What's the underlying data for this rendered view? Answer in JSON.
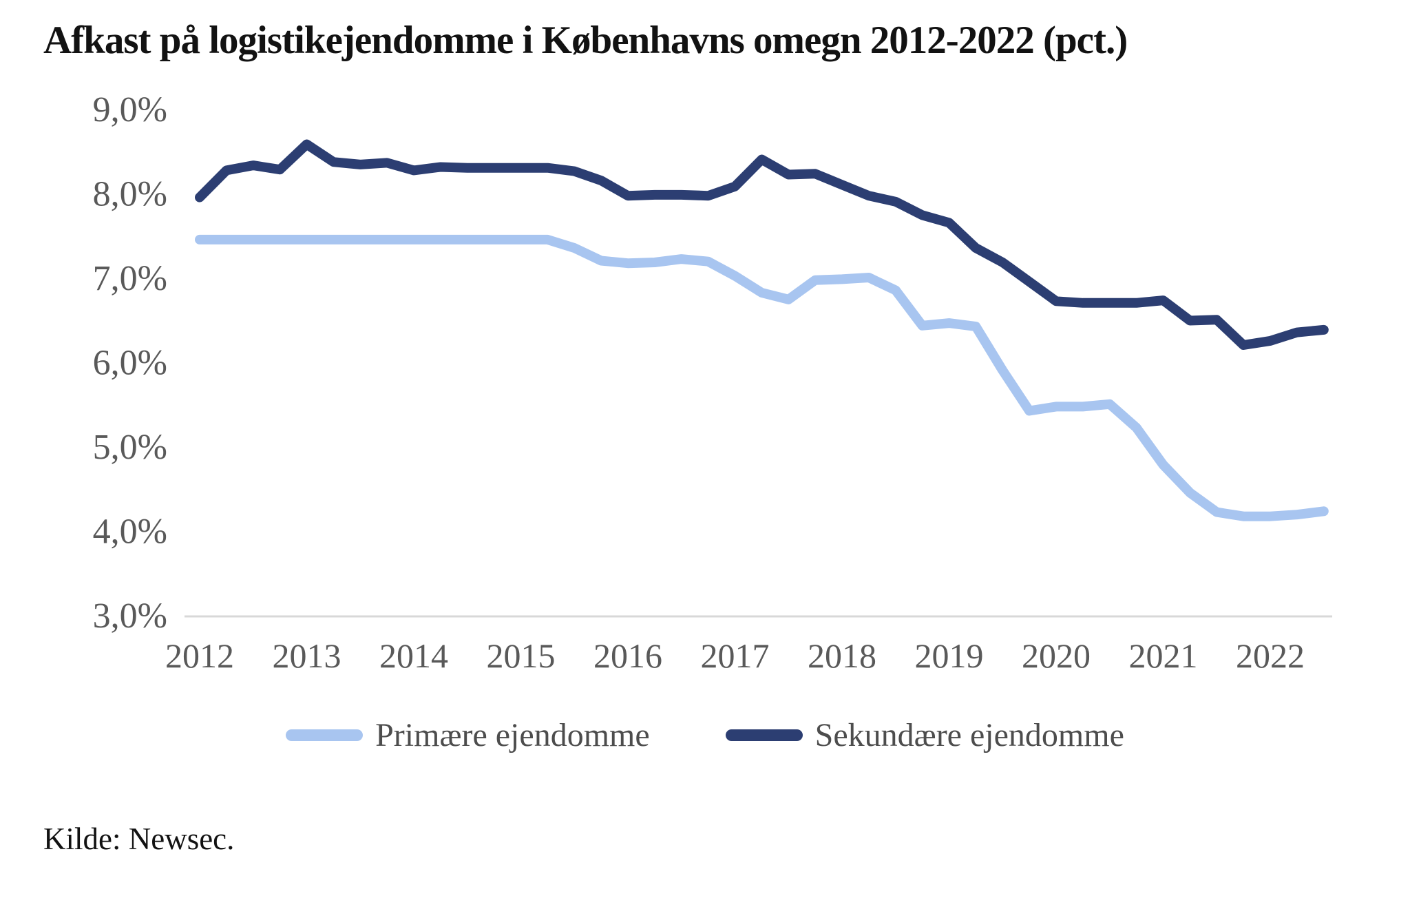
{
  "title": "Afkast på logistikejendomme i Københavns omegn 2012-2022 (pct.)",
  "source": "Kilde: Newsec.",
  "colors": {
    "primary_series": "#a8c5f0",
    "secondary_series": "#2c3e72",
    "axis_line": "#d8d8d8",
    "tick_text": "#595959",
    "legend_text": "#4d4d4d",
    "title_text": "#121212"
  },
  "legend": {
    "items": [
      {
        "label": "Primære ejendomme",
        "color": "#a8c5f0"
      },
      {
        "label": "Sekundære ejendomme",
        "color": "#2c3e72"
      }
    ]
  },
  "chart_data": {
    "type": "line",
    "title": "Afkast på logistikejendomme i Københavns omegn 2012-2022 (pct.)",
    "xlabel": "",
    "ylabel": "",
    "ylim": [
      3.0,
      9.0
    ],
    "grid": false,
    "legend_position": "bottom",
    "ytick_labels": [
      "9,0%",
      "8,0%",
      "7,0%",
      "6,0%",
      "5,0%",
      "4,0%",
      "3,0%"
    ],
    "ytick_values": [
      9.0,
      8.0,
      7.0,
      6.0,
      5.0,
      4.0,
      3.0
    ],
    "xtick_labels": [
      "2012",
      "2013",
      "2014",
      "2015",
      "2016",
      "2017",
      "2018",
      "2019",
      "2020",
      "2021",
      "2022"
    ],
    "xtick_values": [
      2012,
      2013,
      2014,
      2015,
      2016,
      2017,
      2018,
      2019,
      2020,
      2021,
      2022
    ],
    "x_unit": "year (quarterly observations)",
    "x": [
      2012.0,
      2012.25,
      2012.5,
      2012.75,
      2013.0,
      2013.25,
      2013.5,
      2013.75,
      2014.0,
      2014.25,
      2014.5,
      2014.75,
      2015.0,
      2015.25,
      2015.5,
      2015.75,
      2016.0,
      2016.25,
      2016.5,
      2016.75,
      2017.0,
      2017.25,
      2017.5,
      2017.75,
      2018.0,
      2018.25,
      2018.5,
      2018.75,
      2019.0,
      2019.25,
      2019.5,
      2019.75,
      2020.0,
      2020.25,
      2020.5,
      2020.75,
      2021.0,
      2021.25,
      2021.5,
      2021.75,
      2022.0,
      2022.25,
      2022.5
    ],
    "series": [
      {
        "name": "Primære ejendomme",
        "color": "#a8c5f0",
        "values": [
          7.45,
          7.45,
          7.45,
          7.45,
          7.45,
          7.45,
          7.45,
          7.45,
          7.45,
          7.45,
          7.45,
          7.45,
          7.45,
          7.45,
          7.35,
          7.2,
          7.17,
          7.18,
          7.22,
          7.19,
          7.02,
          6.82,
          6.74,
          6.97,
          6.98,
          7.0,
          6.85,
          6.43,
          6.46,
          6.42,
          5.9,
          5.42,
          5.47,
          5.47,
          5.5,
          5.22,
          4.78,
          4.45,
          4.22,
          4.17,
          4.17,
          4.19,
          4.23
        ]
      },
      {
        "name": "Sekundære ejendomme",
        "color": "#2c3e72",
        "values": [
          7.95,
          8.27,
          8.33,
          8.28,
          8.58,
          8.37,
          8.34,
          8.36,
          8.27,
          8.31,
          8.3,
          8.3,
          8.3,
          8.3,
          8.26,
          8.15,
          7.97,
          7.98,
          7.98,
          7.97,
          8.08,
          8.4,
          8.22,
          8.23,
          8.1,
          7.97,
          7.9,
          7.74,
          7.65,
          7.35,
          7.18,
          6.95,
          6.72,
          6.7,
          6.7,
          6.7,
          6.73,
          6.49,
          6.5,
          6.2,
          6.25,
          6.35,
          6.38
        ]
      }
    ]
  }
}
